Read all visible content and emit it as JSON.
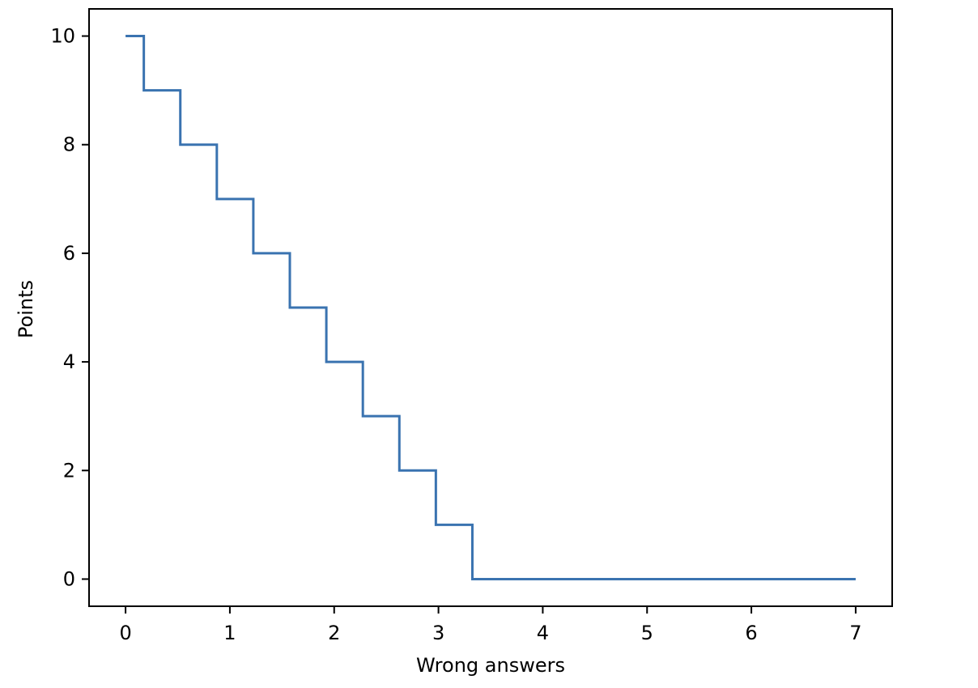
{
  "chart_data": {
    "type": "line",
    "title": "",
    "xlabel": "Wrong answers",
    "ylabel": "Points",
    "xlim": [
      -0.35,
      7.35
    ],
    "ylim": [
      -0.5,
      10.5
    ],
    "xticks": [
      0,
      1,
      2,
      3,
      4,
      5,
      6,
      7
    ],
    "yticks": [
      0,
      2,
      4,
      6,
      8,
      10
    ],
    "grid": false,
    "series": [
      {
        "color": "#3a73b0",
        "x": [
          0,
          0.175,
          0.175,
          0.525,
          0.525,
          0.875,
          0.875,
          1.225,
          1.225,
          1.575,
          1.575,
          1.925,
          1.925,
          2.275,
          2.275,
          2.625,
          2.625,
          2.975,
          2.975,
          3.325,
          3.325,
          7.0
        ],
        "y": [
          10,
          10,
          9,
          9,
          8,
          8,
          7,
          7,
          6,
          6,
          5,
          5,
          4,
          4,
          3,
          3,
          2,
          2,
          1,
          1,
          0,
          0
        ]
      }
    ]
  }
}
